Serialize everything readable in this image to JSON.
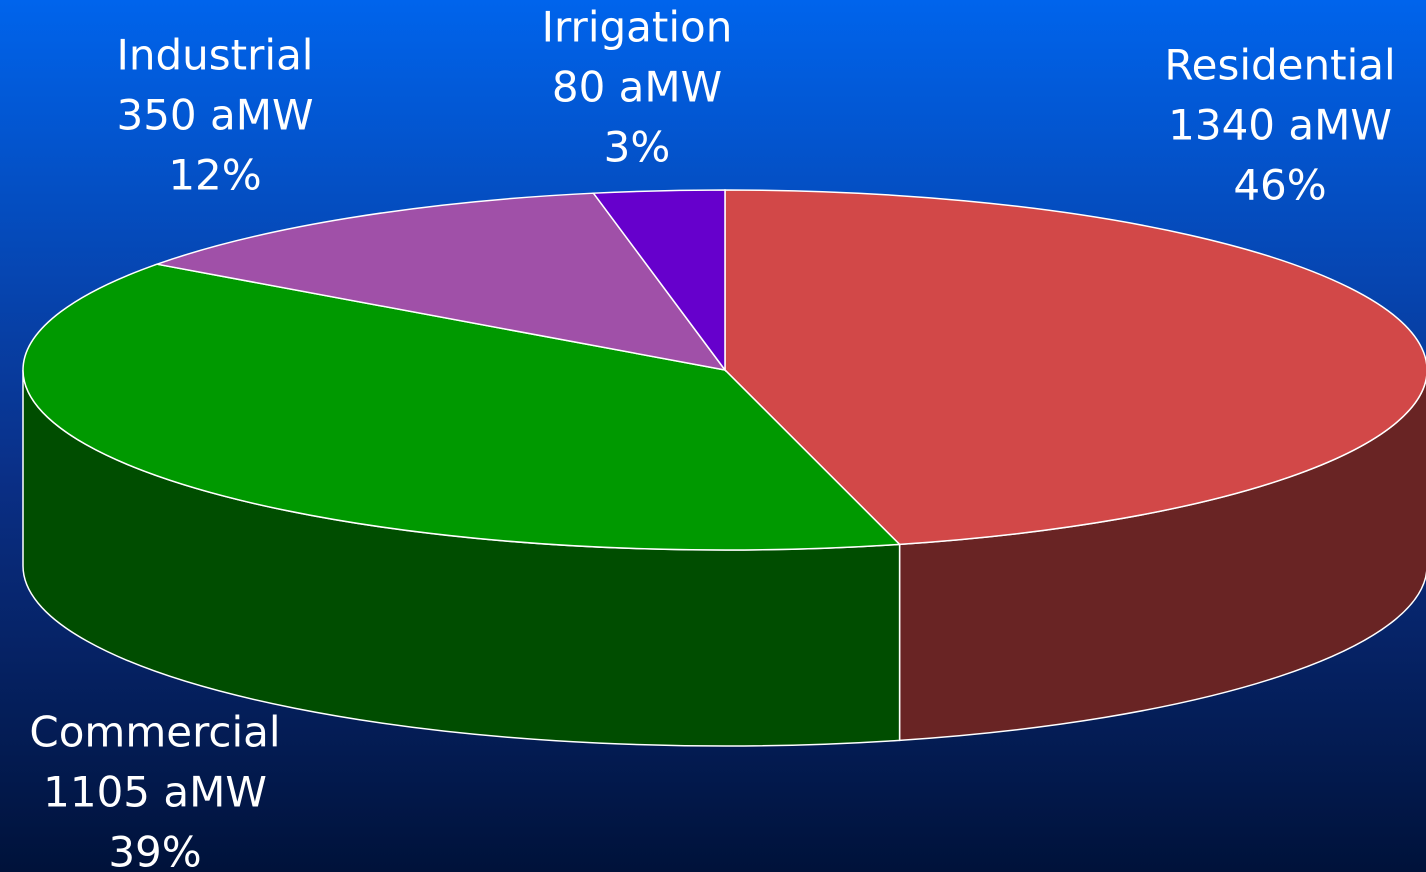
{
  "chart_data": {
    "type": "pie",
    "categories": [
      "Residential",
      "Commercial",
      "Industrial",
      "Irrigation"
    ],
    "values": [
      46,
      39,
      12,
      3
    ],
    "value_labels": [
      "46%",
      "39%",
      "12%",
      "3%"
    ],
    "power_labels": [
      "1340 aMW",
      "1105 aMW",
      "350 aMW",
      "80 aMW"
    ],
    "colors": [
      "#d24848",
      "#009900",
      "#a050a8",
      "#6600cc"
    ]
  }
}
